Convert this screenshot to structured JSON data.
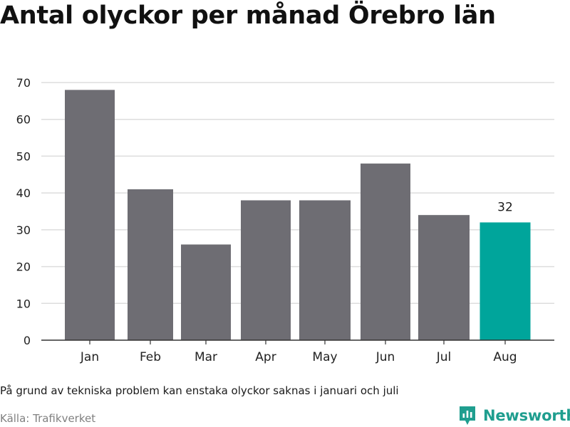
{
  "title": "Antal olyckor per månad Örebro län",
  "note": "På grund av tekniska problem kan enstaka olyckor saknas i januari och juli",
  "source": "Källa: Trafikverket",
  "brand": "Newsworthy",
  "colors": {
    "bar": "#6e6d73",
    "highlight": "#00a59b",
    "grid": "#dddddd",
    "axis": "#333333",
    "brand": "#1f9e8f"
  },
  "chart_data": {
    "type": "bar",
    "categories": [
      "Jan",
      "Feb",
      "Mar",
      "Apr",
      "May",
      "Jun",
      "Jul",
      "Aug"
    ],
    "values": [
      68,
      41,
      26,
      38,
      38,
      48,
      34,
      32
    ],
    "highlight_index": 7,
    "data_labels": [
      {
        "index": 7,
        "text": "32"
      }
    ],
    "ylim": [
      0,
      70
    ],
    "yticks": [
      0,
      10,
      20,
      30,
      40,
      50,
      60,
      70
    ],
    "grid": true,
    "xlabel": "",
    "ylabel": ""
  }
}
